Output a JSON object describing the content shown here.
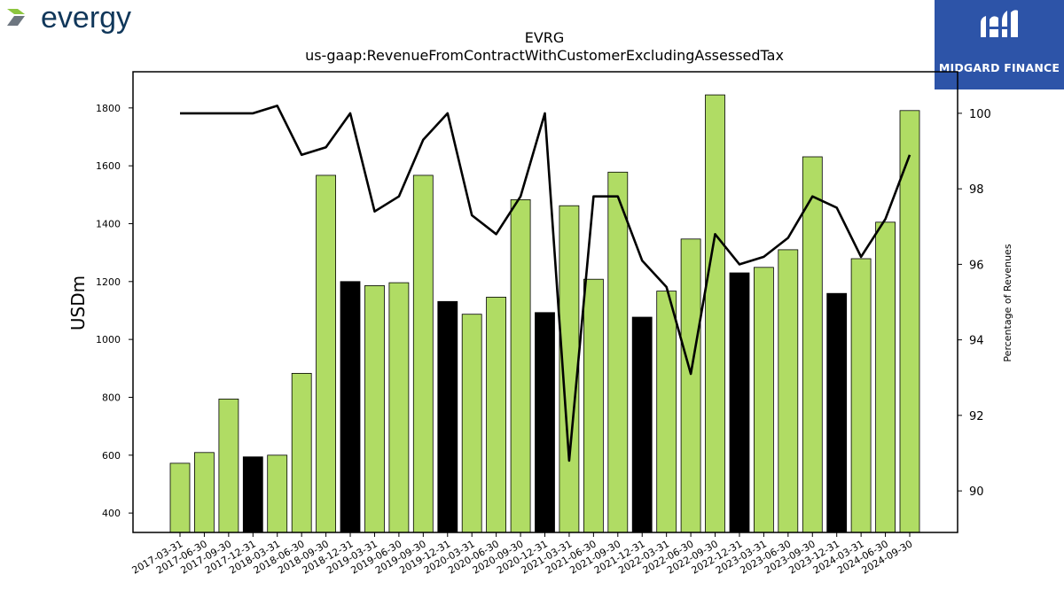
{
  "logos": {
    "company": "evergy",
    "partner": "MIDGARD FINANCE",
    "colors": {
      "evergy_text": "#10375a",
      "evergy_arrow_green": "#8dc63f",
      "evergy_arrow_gray": "#6d7680",
      "midgard_bg": "#2d54a8"
    }
  },
  "chart_data": {
    "type": "bar",
    "title": "EVRG",
    "subtitle": "us-gaap:RevenueFromContractWithCustomerExcludingAssessedTax",
    "ylabel": "USDm",
    "y2label": "Percentage of Revenues",
    "ylim": [
      333,
      1925
    ],
    "y2lim": [
      88.9,
      101.1
    ],
    "yticks": [
      400,
      600,
      800,
      1000,
      1200,
      1400,
      1600,
      1800
    ],
    "y2ticks": [
      90,
      92,
      94,
      96,
      98,
      100
    ],
    "colors": {
      "quarter_bar": "#b0dc64",
      "annual_bar": "#000000",
      "line": "#000000"
    },
    "categories": [
      "2017-03-31",
      "2017-06-30",
      "2017-09-30",
      "2017-12-31",
      "2018-03-31",
      "2018-06-30",
      "2018-09-30",
      "2018-12-31",
      "2019-03-31",
      "2019-06-30",
      "2019-09-30",
      "2019-12-31",
      "2020-03-31",
      "2020-06-30",
      "2020-09-30",
      "2020-12-31",
      "2021-03-31",
      "2021-06-30",
      "2021-09-30",
      "2021-12-31",
      "2022-03-31",
      "2022-06-30",
      "2022-09-30",
      "2022-12-31",
      "2023-03-31",
      "2023-06-30",
      "2023-09-30",
      "2023-12-31",
      "2024-03-31",
      "2024-06-30",
      "2024-09-30"
    ],
    "series": [
      {
        "kind": "bar",
        "values": [
          572,
          609,
          794,
          594,
          600,
          883,
          1567,
          1200,
          1186,
          1196,
          1567,
          1131,
          1087,
          1146,
          1483,
          1093,
          1462,
          1208,
          1578,
          1077,
          1167,
          1347,
          1845,
          1230,
          1249,
          1310,
          1631,
          1159,
          1279,
          1405,
          1791
        ],
        "annual_flags": [
          0,
          0,
          0,
          1,
          0,
          0,
          0,
          1,
          0,
          0,
          0,
          1,
          0,
          0,
          0,
          1,
          0,
          0,
          0,
          1,
          0,
          0,
          0,
          1,
          0,
          0,
          0,
          1,
          0,
          0,
          0
        ]
      },
      {
        "kind": "line",
        "axis": "right",
        "values": [
          100.0,
          100.0,
          100.0,
          100.0,
          100.2,
          98.9,
          99.1,
          100.0,
          97.4,
          97.8,
          99.3,
          100.0,
          97.3,
          96.8,
          97.8,
          100.0,
          90.8,
          97.8,
          97.8,
          96.1,
          95.4,
          93.1,
          96.8,
          96.0,
          96.2,
          96.7,
          97.8,
          97.5,
          96.2,
          97.2,
          98.9
        ]
      }
    ],
    "grid": false,
    "legend": "none"
  }
}
